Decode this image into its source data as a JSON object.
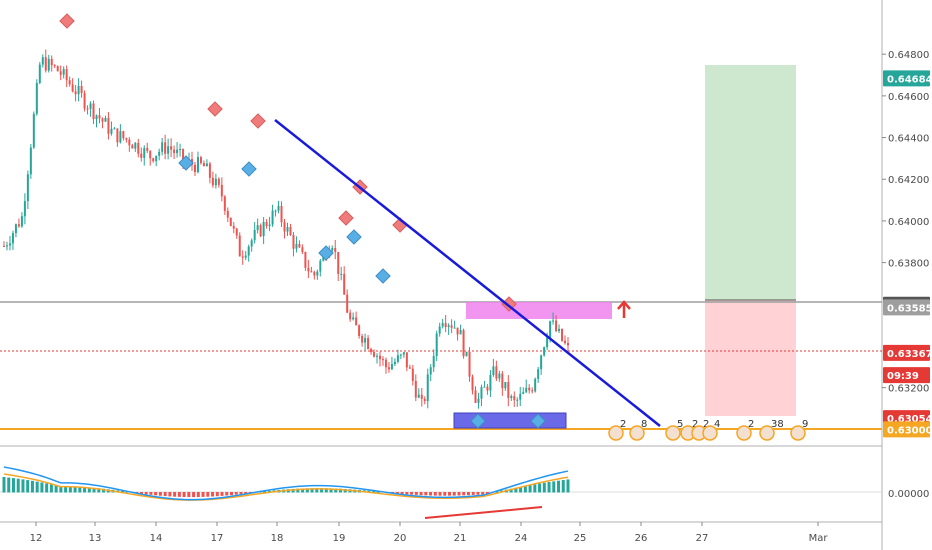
{
  "chart_data": {
    "type": "candlestick",
    "title": "",
    "price_axis": {
      "ticks": [
        0.648,
        0.646,
        0.644,
        0.642,
        0.64,
        0.638,
        0.632
      ],
      "tick_labels": [
        "0.64800",
        "0.64600",
        "0.64400",
        "0.64200",
        "0.64000",
        "0.63800",
        "0.63200"
      ],
      "range": [
        0.6292,
        0.6506
      ]
    },
    "time_axis": {
      "labels": [
        "12",
        "13",
        "14",
        "17",
        "18",
        "19",
        "20",
        "21",
        "24",
        "25",
        "26",
        "27",
        "Mar"
      ]
    },
    "price_tags": [
      {
        "label": "0.64684",
        "value": 0.64684,
        "color": "#26a69a"
      },
      {
        "label": "0.63598",
        "value": 0.63598,
        "color": "#555555"
      },
      {
        "label": "0.63585",
        "value": 0.63585,
        "color": "#9e9e9e"
      },
      {
        "label": "0.63367",
        "value": 0.63367,
        "color": "#e53935"
      },
      {
        "label": "09:39",
        "value": 0.6326,
        "color": "#e53935"
      },
      {
        "label": "0.63054",
        "value": 0.63054,
        "color": "#e53935"
      },
      {
        "label": "0.63000",
        "value": 0.63,
        "color": "#f5a623"
      }
    ],
    "levels": {
      "current_price": 0.63367,
      "resistance": 0.63598,
      "support": 0.63,
      "target": 0.64684,
      "stop": 0.63054
    },
    "series_close_approx": [
      0.6388,
      0.6402,
      0.6477,
      0.6472,
      0.6462,
      0.6452,
      0.6442,
      0.6438,
      0.6431,
      0.6436,
      0.6428,
      0.6426,
      0.6412,
      0.6384,
      0.6395,
      0.6405,
      0.6388,
      0.6373,
      0.6392,
      0.6352,
      0.6342,
      0.633,
      0.6335,
      0.631,
      0.6355,
      0.6348,
      0.6313,
      0.6328,
      0.6312,
      0.632,
      0.6352,
      0.6338
    ],
    "indicator": {
      "zero_label": "0.00000"
    },
    "event_badges": [
      "2",
      "8",
      "5",
      "2",
      "2",
      "4",
      "2",
      "38",
      "9"
    ],
    "colors": {
      "up": "#26a69a",
      "down": "#ef5350",
      "trendline": "#1a1adb",
      "resistance_zone": "#ee82ee",
      "support_zone": "#5a5ae6",
      "profit_zone": "#c8e6c9",
      "loss_zone": "#ffcdd2",
      "support_line": "#f5a623"
    }
  }
}
